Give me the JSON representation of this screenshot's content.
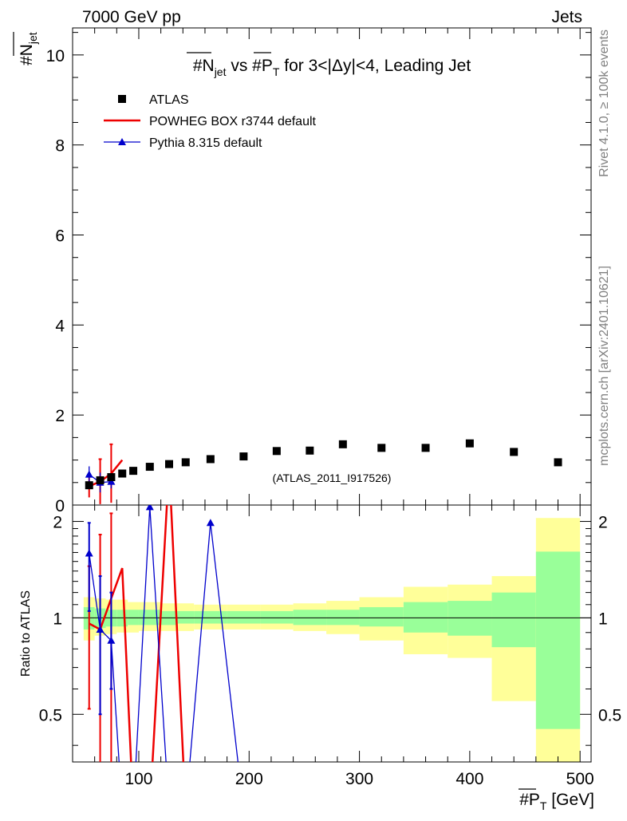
{
  "header": {
    "energy": "7000 GeV pp",
    "category": "Jets",
    "side_top": "Rivet 4.1.0, ≥ 100k events",
    "side_bottom": "mcplots.cern.ch [arXiv:2401.10621]",
    "watermark": "(ATLAS_2011_I917526)"
  },
  "chart_data": [
    {
      "type": "scatter",
      "panel": "main",
      "title": "#N_jet vs #P_T for 3<|Δy|<4, Leading Jet",
      "xlabel": "#P_T [GeV]",
      "ylabel": "#N_jet",
      "xlim": [
        40,
        510
      ],
      "ylim": [
        0,
        10.6
      ],
      "xticks": [
        100,
        200,
        300,
        400,
        500
      ],
      "yticks": [
        0,
        2,
        4,
        6,
        8,
        10
      ],
      "legend": [
        {
          "name": "ATLAS",
          "style": "marker-square",
          "color": "#000000"
        },
        {
          "name": "POWHEG BOX r3744 default",
          "style": "line",
          "color": "#ee0000"
        },
        {
          "name": "Pythia 8.315 default",
          "style": "line-triangle",
          "color": "#0000cc"
        }
      ],
      "series": [
        {
          "name": "ATLAS",
          "color": "#000000",
          "x": [
            55,
            65,
            75,
            85,
            95,
            110,
            127.5,
            142.5,
            165,
            195,
            225,
            255,
            285,
            320,
            360,
            400,
            440,
            480
          ],
          "y": [
            0.44,
            0.55,
            0.62,
            0.7,
            0.76,
            0.85,
            0.91,
            0.95,
            1.02,
            1.08,
            1.2,
            1.21,
            1.35,
            1.27,
            1.27,
            1.37,
            1.18,
            0.95
          ]
        },
        {
          "name": "POWHEG BOX r3744 default",
          "color": "#ee0000",
          "x": [
            55,
            65,
            75,
            85
          ],
          "y": [
            0.42,
            0.52,
            0.7,
            1.0
          ],
          "yerr": [
            0.25,
            0.5,
            0.65,
            0
          ]
        },
        {
          "name": "Pythia 8.315 default",
          "color": "#0000cc",
          "x": [
            55,
            65,
            75
          ],
          "y": [
            0.68,
            0.5,
            0.52
          ],
          "yerr": [
            0.18,
            0.22,
            0.15
          ]
        }
      ]
    },
    {
      "type": "line",
      "panel": "ratio",
      "ylabel": "Ratio to ATLAS",
      "xlim": [
        40,
        510
      ],
      "ylim": [
        0.355,
        2.25
      ],
      "yscale": "log",
      "yticks": [
        0.5,
        1,
        2
      ],
      "xticks": [
        100,
        200,
        300,
        400,
        500
      ],
      "bands": {
        "edges": [
          50,
          60,
          70,
          80,
          90,
          100,
          120,
          135,
          150,
          180,
          210,
          240,
          270,
          300,
          340,
          380,
          420,
          460,
          500
        ],
        "stat_low": [
          0.92,
          0.93,
          0.94,
          0.94,
          0.95,
          0.95,
          0.95,
          0.96,
          0.96,
          0.96,
          0.96,
          0.95,
          0.95,
          0.94,
          0.9,
          0.88,
          0.81,
          0.45
        ],
        "stat_high": [
          1.08,
          1.07,
          1.06,
          1.06,
          1.06,
          1.06,
          1.05,
          1.05,
          1.05,
          1.05,
          1.05,
          1.06,
          1.06,
          1.08,
          1.12,
          1.13,
          1.2,
          1.61
        ],
        "syst_low": [
          0.85,
          0.88,
          0.89,
          0.9,
          0.9,
          0.91,
          0.91,
          0.91,
          0.92,
          0.92,
          0.92,
          0.91,
          0.89,
          0.85,
          0.77,
          0.75,
          0.55,
          0.3
        ],
        "syst_high": [
          1.16,
          1.15,
          1.14,
          1.14,
          1.12,
          1.12,
          1.11,
          1.11,
          1.1,
          1.1,
          1.1,
          1.11,
          1.13,
          1.16,
          1.25,
          1.27,
          1.35,
          2.05
        ]
      },
      "series": [
        {
          "name": "POWHEG BOX r3744 default",
          "color": "#ee0000",
          "x": [
            55,
            65,
            75,
            85,
            95,
            110,
            127.5,
            142.5
          ],
          "y": [
            0.96,
            0.92,
            1.15,
            1.43,
            0.25,
            0.25,
            3.0,
            0.25
          ],
          "err_lo": [
            0.52,
            0.25,
            0.3,
            0,
            0,
            0,
            0,
            0
          ],
          "err_hi": [
            1.45,
            1.82,
            2.12,
            0,
            0,
            0,
            0,
            0
          ]
        },
        {
          "name": "Pythia 8.315 default",
          "color": "#0000cc",
          "x": [
            55,
            65,
            75,
            85,
            95,
            110,
            127.5,
            142.5,
            165,
            195
          ],
          "y": [
            1.59,
            0.92,
            0.85,
            0.25,
            0.25,
            2.22,
            0.25,
            0.25,
            1.98,
            0.25
          ],
          "err_lo": [
            1.05,
            0.5,
            0.6,
            0,
            0,
            0,
            0,
            0,
            0,
            0
          ],
          "err_hi": [
            1.98,
            1.35,
            1.2,
            0,
            0,
            0,
            0,
            0,
            0,
            0
          ]
        }
      ]
    }
  ]
}
